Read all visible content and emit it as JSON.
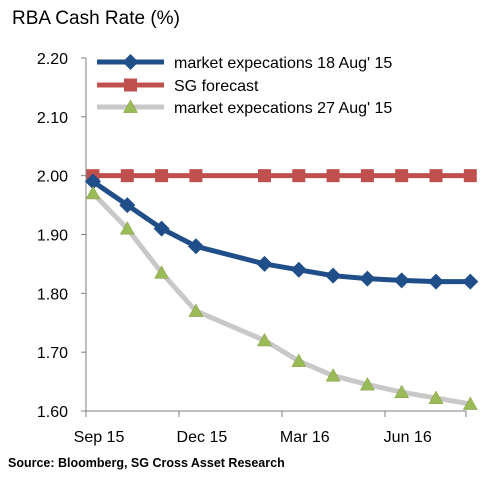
{
  "chart_data": {
    "type": "line",
    "title": "RBA Cash Rate (%)",
    "source": "Source: Bloomberg, SG Cross Asset Research",
    "ylim": [
      1.6,
      2.2
    ],
    "yticks": [
      "2.20",
      "2.10",
      "2.00",
      "1.90",
      "1.80",
      "1.70",
      "1.60"
    ],
    "xticks": [
      "Sep 15",
      "Dec 15",
      "Mar 16",
      "Jun 16"
    ],
    "xtick_months": [
      0,
      3,
      6,
      9
    ],
    "grid": false,
    "legend_position": "top",
    "series": [
      {
        "name": "market expecations 18 Aug' 15",
        "color": "#1f4e89",
        "marker": "diamond",
        "x": [
          0,
          1,
          2,
          3,
          5,
          6,
          7,
          8,
          9,
          10,
          11
        ],
        "values": [
          1.99,
          1.95,
          1.91,
          1.88,
          1.85,
          1.84,
          1.83,
          1.825,
          1.822,
          1.82,
          1.82
        ]
      },
      {
        "name": "SG forecast",
        "color": "#c0504d",
        "marker": "square",
        "x": [
          0,
          1,
          2,
          3,
          5,
          6,
          7,
          8,
          9,
          10,
          11
        ],
        "values": [
          2.0,
          2.0,
          2.0,
          2.0,
          2.0,
          2.0,
          2.0,
          2.0,
          2.0,
          2.0,
          2.0
        ]
      },
      {
        "name": "market expecations 27 Aug' 15",
        "color": "#c8c8c8",
        "marker_color": "#9bbb59",
        "marker": "triangle",
        "x": [
          0,
          1,
          2,
          3,
          5,
          6,
          7,
          8,
          9,
          10,
          11
        ],
        "values": [
          1.97,
          1.91,
          1.835,
          1.77,
          1.72,
          1.685,
          1.66,
          1.645,
          1.632,
          1.622,
          1.612
        ]
      }
    ]
  }
}
